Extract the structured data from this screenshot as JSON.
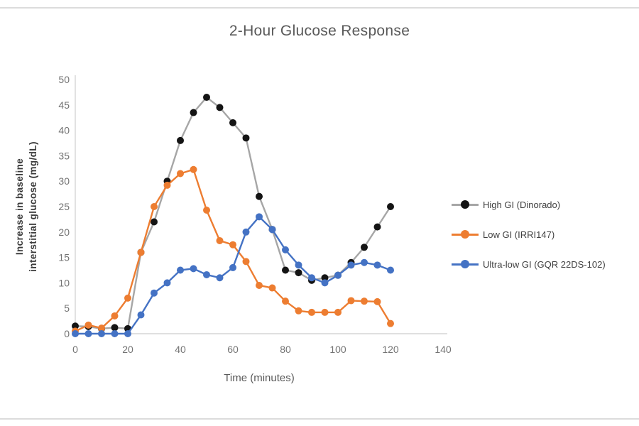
{
  "page": {
    "background": "#ffffff",
    "edge_line_color": "#dcdcdc"
  },
  "chart_data": {
    "type": "line",
    "title": "2-Hour Glucose Response",
    "xlabel": "Time (minutes)",
    "ylabel_line1": "Increase in baseline",
    "ylabel_line2": "interstitial glucose (mg/dL)",
    "xlim": [
      0,
      140
    ],
    "ylim": [
      0,
      50
    ],
    "xticks": [
      0,
      20,
      40,
      60,
      80,
      100,
      120,
      140
    ],
    "yticks": [
      0,
      5,
      10,
      15,
      20,
      25,
      30,
      35,
      40,
      45,
      50
    ],
    "grid": false,
    "legend_position": "right",
    "tick_color": "#737373",
    "axis_color": "#d6d6d6",
    "x": [
      0,
      5,
      10,
      15,
      20,
      25,
      30,
      35,
      40,
      45,
      50,
      55,
      60,
      65,
      70,
      75,
      80,
      85,
      90,
      95,
      100,
      105,
      110,
      115,
      120
    ],
    "series": [
      {
        "name": "High GI (Dinorado)",
        "line_color": "#a6a6a6",
        "marker_color": "#141414",
        "values": [
          1.5,
          1.4,
          1,
          1.2,
          1,
          16,
          22,
          30,
          38,
          43.5,
          46.5,
          44.5,
          41.5,
          38.5,
          27,
          20.5,
          12.5,
          12,
          10.5,
          11,
          11.5,
          14,
          17,
          21,
          25
        ]
      },
      {
        "name": "Low GI (IRRI147)",
        "line_color": "#ED7D31",
        "marker_color": "#ED7D31",
        "values": [
          0.5,
          1.7,
          1.1,
          3.5,
          7,
          16,
          25,
          29.2,
          31.5,
          32.3,
          24.3,
          18.3,
          17.5,
          14.2,
          9.5,
          9,
          6.4,
          4.5,
          4.2,
          4.2,
          4.2,
          6.5,
          6.4,
          6.3,
          2
        ]
      },
      {
        "name": "Ultra-low GI (GQR 22DS-102)",
        "line_color": "#4472C4",
        "marker_color": "#4472C4",
        "values": [
          0,
          0,
          0,
          0,
          0,
          3.7,
          8,
          10,
          12.5,
          12.8,
          11.6,
          11,
          13,
          20,
          23,
          20.5,
          16.5,
          13.5,
          11,
          10,
          11.5,
          13.5,
          14,
          13.5,
          12.5
        ]
      }
    ]
  }
}
